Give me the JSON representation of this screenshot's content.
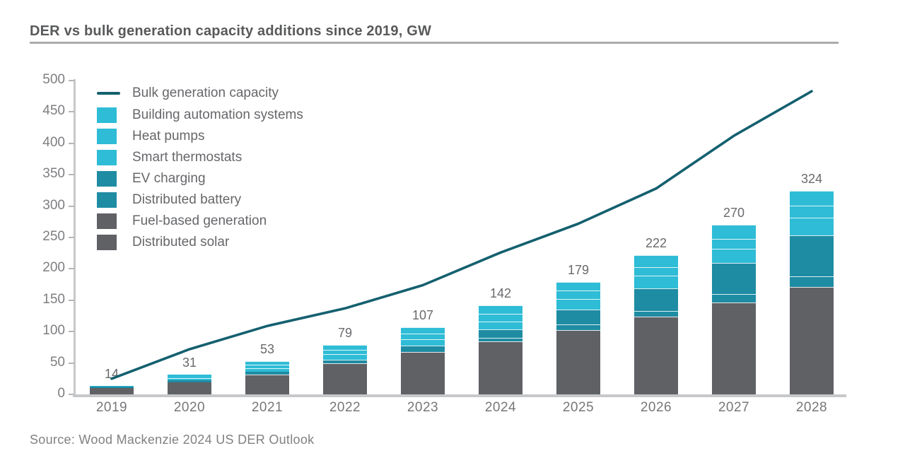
{
  "title": "DER vs bulk generation capacity additions since 2019, GW",
  "source": "Source: Wood Mackenzie 2024 US DER Outlook",
  "legend": [
    {
      "label": "Bulk generation capacity",
      "type": "line",
      "color": "#14606f"
    },
    {
      "label": "Building automation systems",
      "type": "square",
      "color": "#2ebcd6"
    },
    {
      "label": "Heat pumps",
      "type": "square",
      "color": "#2ebcd6"
    },
    {
      "label": "Smart thermostats",
      "type": "square",
      "color": "#2ebcd6"
    },
    {
      "label": "EV charging",
      "type": "square",
      "color": "#1e8ca3"
    },
    {
      "label": "Distributed battery",
      "type": "square",
      "color": "#1e8ca3"
    },
    {
      "label": "Fuel-based generation",
      "type": "square",
      "color": "#5f6165"
    },
    {
      "label": "Distributed solar",
      "type": "square",
      "color": "#5f6165"
    }
  ],
  "chart_data": {
    "type": "stacked-bar+line",
    "title": "DER vs bulk generation capacity additions since 2019, GW",
    "unit": "GW",
    "categories": [
      "2019",
      "2020",
      "2021",
      "2022",
      "2023",
      "2024",
      "2025",
      "2026",
      "2027",
      "2028"
    ],
    "totals": [
      14,
      31,
      53,
      79,
      107,
      142,
      179,
      222,
      270,
      324
    ],
    "series": [
      {
        "key": "distributed-solar",
        "name": "Distributed solar",
        "color": "#5f6165",
        "values": [
          3,
          6,
          14,
          25,
          33,
          43,
          53,
          65,
          78,
          90
        ]
      },
      {
        "key": "fuel-based-generation",
        "name": "Fuel-based generation",
        "color": "#5f6165",
        "values": [
          8,
          14,
          18,
          24,
          35,
          42,
          50,
          59,
          68,
          81
        ]
      },
      {
        "key": "distributed-battery",
        "name": "Distributed battery",
        "color": "#1e8ca3",
        "values": [
          0.3,
          0.5,
          1,
          1.5,
          2,
          5,
          8,
          9,
          14,
          17
        ]
      },
      {
        "key": "ev-charging",
        "name": "EV charging",
        "color": "#1e8ca3",
        "values": [
          0.7,
          1.5,
          2.5,
          5,
          8,
          14,
          24,
          36,
          49,
          65
        ]
      },
      {
        "key": "smart-thermostats",
        "name": "Smart thermostats",
        "color": "#2ebcd6",
        "values": [
          1,
          3.5,
          6,
          8.5,
          10,
          12,
          17,
          20,
          23,
          28
        ]
      },
      {
        "key": "heat-pumps",
        "name": "Heat pumps",
        "color": "#2ebcd6",
        "values": [
          0.5,
          2.5,
          5.5,
          7,
          9,
          12,
          13,
          14,
          16,
          20
        ]
      },
      {
        "key": "building-automation-systems",
        "name": "Building automation systems",
        "color": "#2ebcd6",
        "values": [
          0.5,
          3,
          6,
          8,
          10,
          14,
          14,
          19,
          22,
          23
        ]
      }
    ],
    "line_series": {
      "name": "Bulk generation capacity",
      "color": "#14606f",
      "values": [
        25,
        72,
        109,
        137,
        174,
        226,
        272,
        328,
        412,
        483
      ]
    },
    "ylim": [
      0,
      500
    ],
    "yticks": [
      0,
      50,
      100,
      150,
      200,
      250,
      300,
      350,
      400,
      450,
      500
    ],
    "legend_position": "top-left",
    "grid": false
  }
}
